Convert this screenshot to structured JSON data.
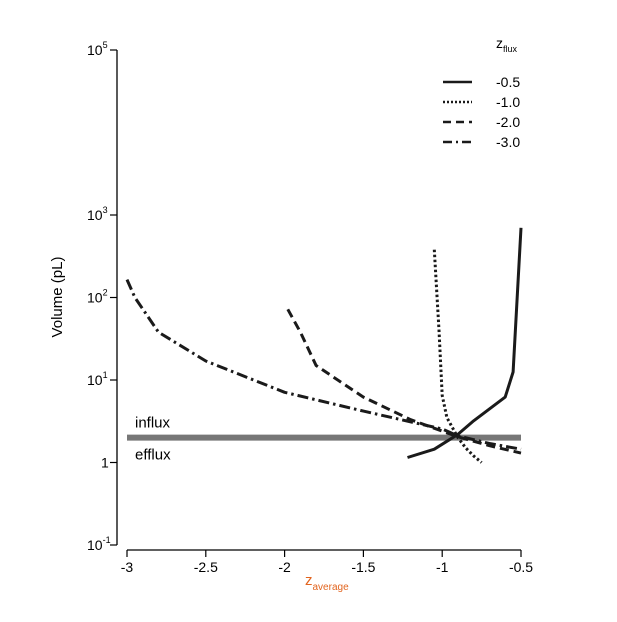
{
  "chart_data": {
    "type": "line",
    "xlabel_main": "z",
    "xlabel_sub": "average",
    "ylabel": "Volume (pL)",
    "xlim": [
      -3.0,
      -0.5
    ],
    "ylim": [
      0.1,
      100000
    ],
    "y_scale": "log",
    "x_ticks": [
      {
        "value": -3.0,
        "label": "-3"
      },
      {
        "value": -2.5,
        "label": "-2.5"
      },
      {
        "value": -2.0,
        "label": "-2"
      },
      {
        "value": -1.5,
        "label": "-1.5"
      },
      {
        "value": -1.0,
        "label": "-1"
      },
      {
        "value": -0.5,
        "label": "-0.5"
      }
    ],
    "y_ticks": [
      {
        "value": 0.1,
        "base": "10",
        "exp": "-1"
      },
      {
        "value": 1,
        "base": "1",
        "exp": ""
      },
      {
        "value": 10,
        "base": "10",
        "exp": "1"
      },
      {
        "value": 100,
        "base": "10",
        "exp": "2"
      },
      {
        "value": 1000,
        "base": "10",
        "exp": "3"
      },
      {
        "value": 100000,
        "base": "10",
        "exp": "5"
      }
    ],
    "legend": {
      "title_main": "z",
      "title_sub": "flux",
      "position": "top-right"
    },
    "series": [
      {
        "name": "-0.5",
        "dash": "solid",
        "points": [
          [
            -1.22,
            1.15
          ],
          [
            -1.05,
            1.45
          ],
          [
            -0.9,
            2.2
          ],
          [
            -0.8,
            3.2
          ],
          [
            -0.6,
            6.2
          ],
          [
            -0.55,
            12.5
          ],
          [
            -0.5,
            700
          ]
        ]
      },
      {
        "name": "-1.0",
        "dash": "dotted",
        "points": [
          [
            -1.05,
            380
          ],
          [
            -1.02,
            40
          ],
          [
            -1.0,
            6.5
          ],
          [
            -0.97,
            3.5
          ],
          [
            -0.9,
            2.0
          ],
          [
            -0.85,
            1.5
          ],
          [
            -0.8,
            1.2
          ],
          [
            -0.75,
            1.0
          ]
        ]
      },
      {
        "name": "-2.0",
        "dash": "dashed",
        "points": [
          [
            -1.98,
            72
          ],
          [
            -1.9,
            38
          ],
          [
            -1.8,
            15
          ],
          [
            -1.5,
            6.2
          ],
          [
            -1.2,
            3.3
          ],
          [
            -1.0,
            2.4
          ],
          [
            -0.9,
            2.05
          ],
          [
            -0.7,
            1.6
          ],
          [
            -0.5,
            1.3
          ]
        ]
      },
      {
        "name": "-3.0",
        "dash": "dashdot",
        "points": [
          [
            -3.0,
            165
          ],
          [
            -2.95,
            100
          ],
          [
            -2.8,
            38
          ],
          [
            -2.5,
            17
          ],
          [
            -2.0,
            7.1
          ],
          [
            -1.5,
            4.2
          ],
          [
            -1.0,
            2.55
          ],
          [
            -0.9,
            2.1
          ],
          [
            -0.7,
            1.7
          ],
          [
            -0.5,
            1.45
          ]
        ]
      }
    ],
    "threshold": {
      "value": 2.0,
      "label_above": "influx",
      "label_below": "efflux",
      "color": "#777777"
    }
  }
}
